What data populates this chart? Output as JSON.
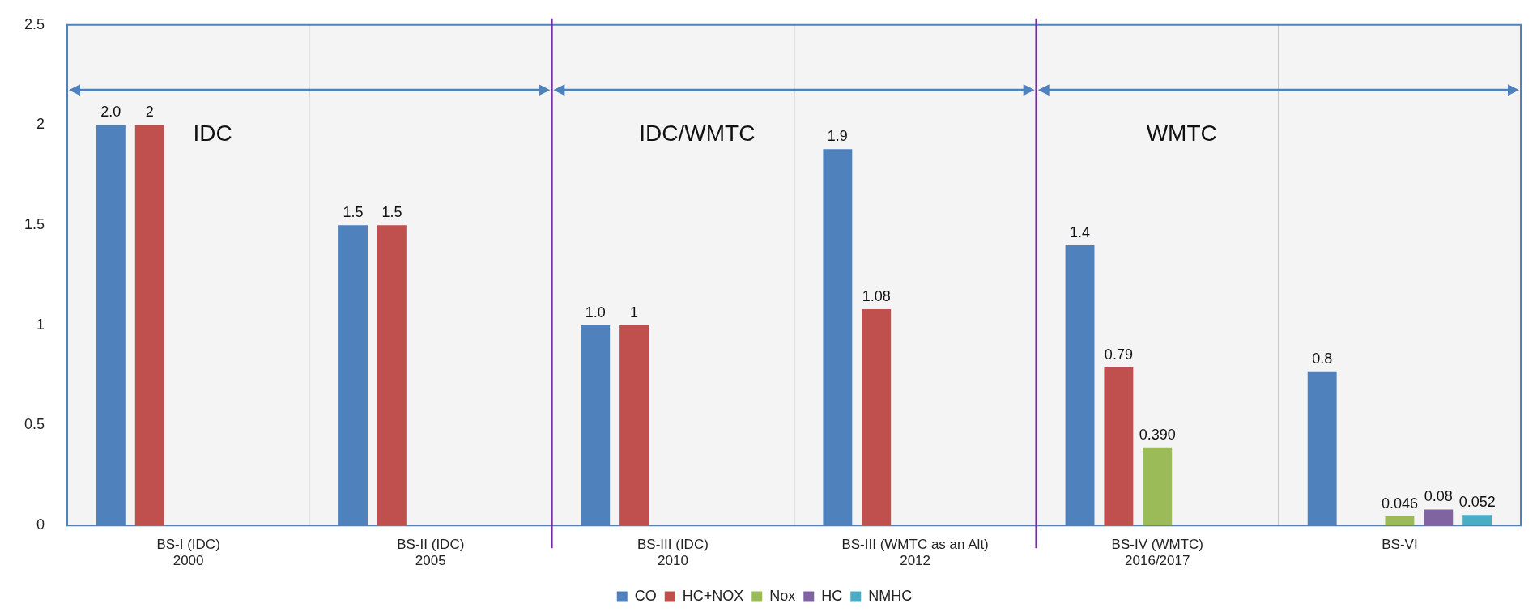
{
  "chart_data": {
    "type": "bar",
    "categories": [
      "BS-I (IDC)\n2000",
      "BS-II (IDC)\n2005",
      "BS-III (IDC)\n2010",
      "BS-III (WMTC as an Alt)\n2012",
      "BS-IV (WMTC)\n2016/2017",
      "BS-VI"
    ],
    "series": [
      {
        "name": "CO",
        "color": "#4f81bd",
        "values": [
          2.0,
          1.5,
          1.0,
          1.88,
          1.4,
          0.77
        ],
        "value_labels": [
          "2.0",
          "1.5",
          "1.0",
          "1.9",
          "1.4",
          "0.8"
        ]
      },
      {
        "name": "HC+NOX",
        "color": "#c0504d",
        "values": [
          2,
          1.5,
          1,
          1.08,
          0.79,
          null
        ],
        "value_labels": [
          "2",
          "1.5",
          "1",
          "1.08",
          "0.79",
          null
        ]
      },
      {
        "name": "Nox",
        "color": "#9bbb59",
        "values": [
          null,
          null,
          null,
          null,
          0.39,
          0.046
        ],
        "value_labels": [
          null,
          null,
          null,
          null,
          "0.390",
          "0.046"
        ]
      },
      {
        "name": "HC",
        "color": "#8064a2",
        "values": [
          null,
          null,
          null,
          null,
          null,
          0.08
        ],
        "value_labels": [
          null,
          null,
          null,
          null,
          null,
          "0.08"
        ]
      },
      {
        "name": "NMHC",
        "color": "#4bacc6",
        "values": [
          null,
          null,
          null,
          null,
          null,
          0.052
        ],
        "value_labels": [
          null,
          null,
          null,
          null,
          null,
          "0.052"
        ]
      }
    ],
    "ylim": [
      0,
      2.5
    ],
    "yticks": [
      0,
      0.5,
      1,
      1.5,
      2,
      2.5
    ],
    "annotations": [
      "IDC",
      "IDC/WMTC",
      "WMTC"
    ],
    "grid": "x",
    "legend": "bottom"
  }
}
